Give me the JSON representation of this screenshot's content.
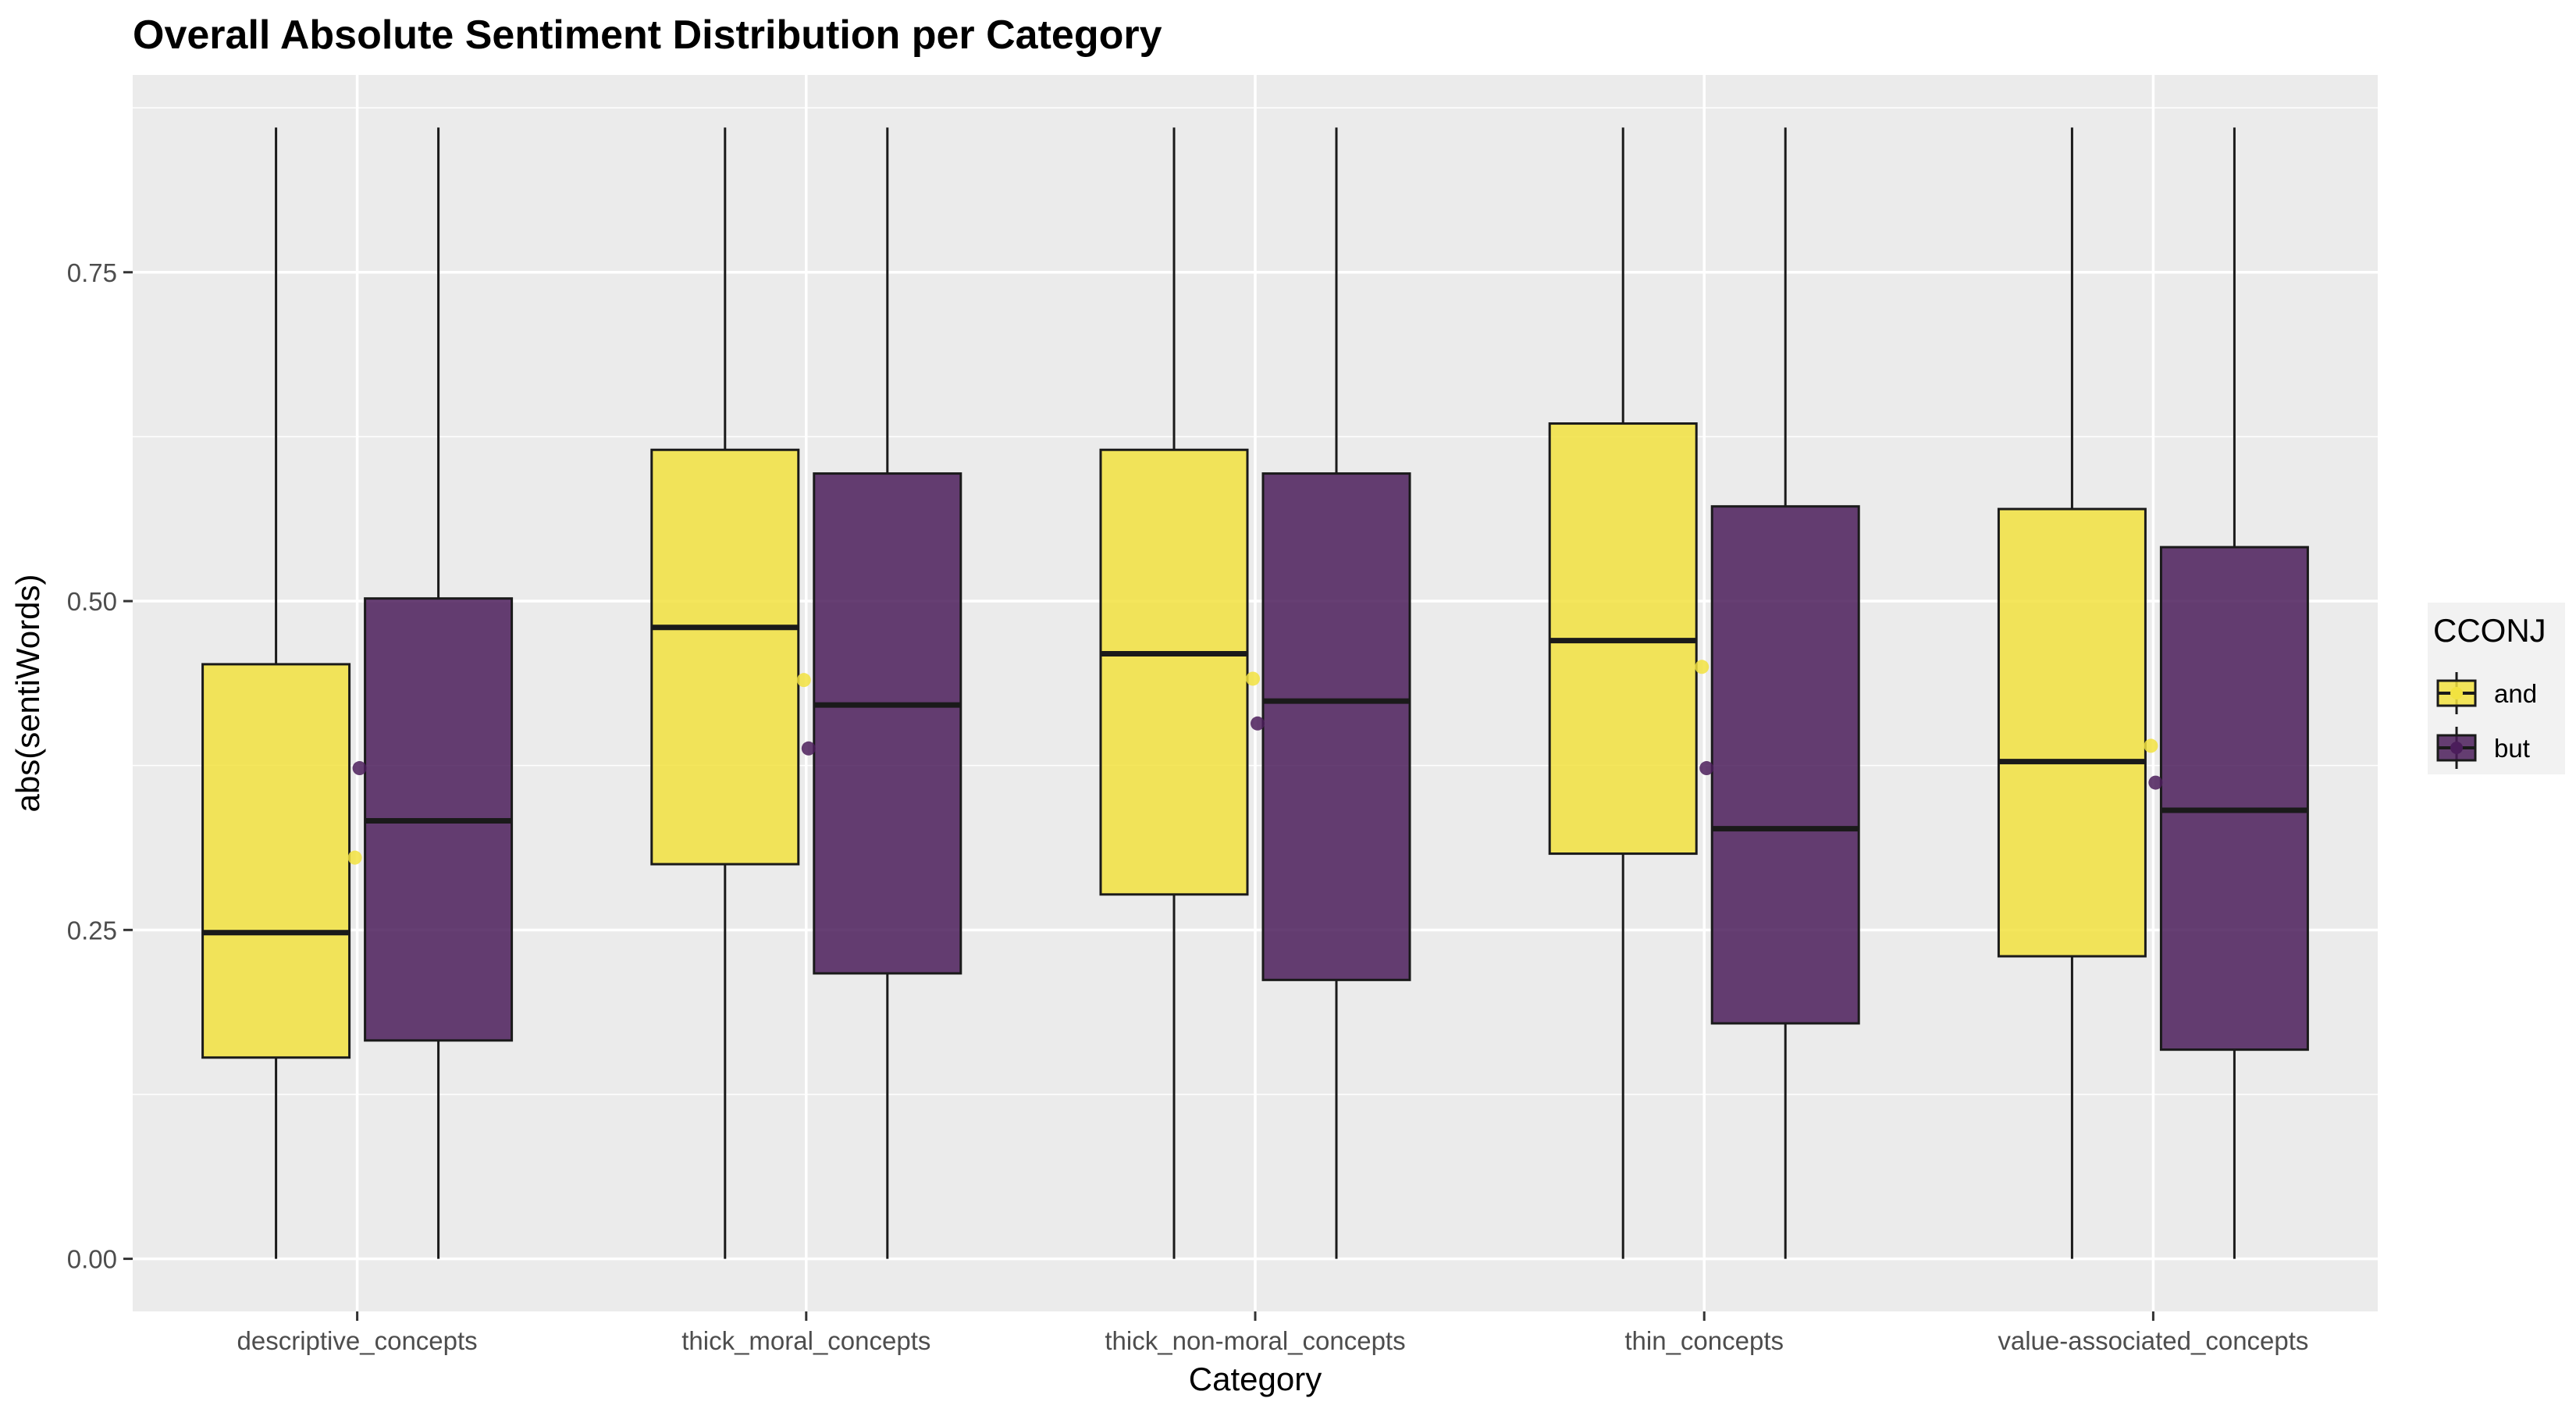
{
  "chart_data": {
    "type": "boxplot",
    "title": "Overall Absolute Sentiment Distribution per Category",
    "xlabel": "Category",
    "ylabel": "abs(sentiWords)",
    "ylim": [
      -0.04,
      0.9
    ],
    "y_ticks": [
      0.0,
      0.25,
      0.5,
      0.75
    ],
    "y_tick_labels": [
      "0.00",
      "0.25",
      "0.50",
      "0.75"
    ],
    "grid": true,
    "legend": {
      "title": "CCONJ",
      "position": "right"
    },
    "categories": [
      "descriptive_concepts",
      "thick_moral_concepts",
      "thick_non-moral_concepts",
      "thin_concepts",
      "value-associated_concepts"
    ],
    "series": [
      {
        "name": "and",
        "color": "#F2E240",
        "boxes": [
          {
            "min": 0.0,
            "q1": 0.153,
            "median": 0.248,
            "q3": 0.452,
            "max": 0.86,
            "mean": 0.305
          },
          {
            "min": 0.0,
            "q1": 0.3,
            "median": 0.48,
            "q3": 0.615,
            "max": 0.86,
            "mean": 0.44
          },
          {
            "min": 0.0,
            "q1": 0.277,
            "median": 0.46,
            "q3": 0.615,
            "max": 0.86,
            "mean": 0.441
          },
          {
            "min": 0.0,
            "q1": 0.308,
            "median": 0.47,
            "q3": 0.635,
            "max": 0.86,
            "mean": 0.45
          },
          {
            "min": 0.0,
            "q1": 0.23,
            "median": 0.378,
            "q3": 0.57,
            "max": 0.86,
            "mean": 0.39
          }
        ]
      },
      {
        "name": "but",
        "color": "#4B1D5B",
        "boxes": [
          {
            "min": 0.0,
            "q1": 0.166,
            "median": 0.333,
            "q3": 0.502,
            "max": 0.86,
            "mean": 0.373
          },
          {
            "min": 0.0,
            "q1": 0.217,
            "median": 0.421,
            "q3": 0.597,
            "max": 0.86,
            "mean": 0.388
          },
          {
            "min": 0.0,
            "q1": 0.212,
            "median": 0.424,
            "q3": 0.597,
            "max": 0.86,
            "mean": 0.407
          },
          {
            "min": 0.0,
            "q1": 0.179,
            "median": 0.327,
            "q3": 0.572,
            "max": 0.86,
            "mean": 0.373
          },
          {
            "min": 0.0,
            "q1": 0.159,
            "median": 0.341,
            "q3": 0.541,
            "max": 0.86,
            "mean": 0.362
          }
        ]
      }
    ]
  }
}
